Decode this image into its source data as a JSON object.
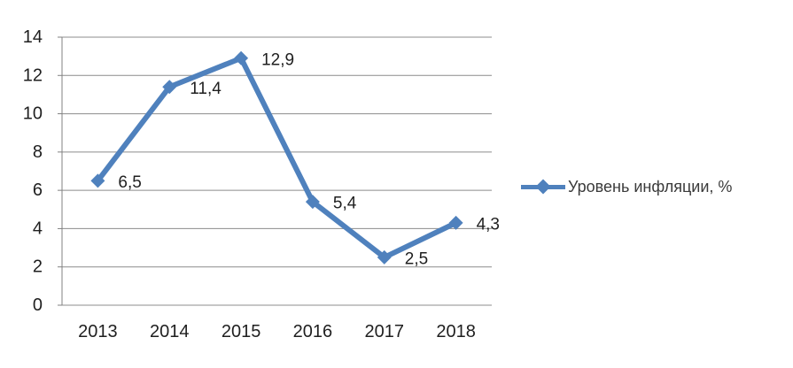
{
  "chart_data": {
    "type": "line",
    "title": "",
    "categories": [
      "2013",
      "2014",
      "2015",
      "2016",
      "2017",
      "2018"
    ],
    "series": [
      {
        "name": "Уровень инфляции, %",
        "values": [
          6.5,
          11.4,
          12.9,
          5.4,
          2.5,
          4.3
        ],
        "labels": [
          "6,5",
          "11,4",
          "12,9",
          "5,4",
          "2,5",
          "4,3"
        ]
      }
    ],
    "xlabel": "",
    "ylabel": "",
    "ylim": [
      0,
      14
    ],
    "ytick_step": 2,
    "yticks": [
      "0",
      "2",
      "4",
      "6",
      "8",
      "10",
      "12",
      "14"
    ],
    "grid": "horizontal",
    "legend_position": "right",
    "marker": "diamond",
    "colors": {
      "series": "#4f81bd",
      "gridline": "#8c8c8c",
      "axis": "#808080",
      "text": "#1f1f1f"
    }
  }
}
